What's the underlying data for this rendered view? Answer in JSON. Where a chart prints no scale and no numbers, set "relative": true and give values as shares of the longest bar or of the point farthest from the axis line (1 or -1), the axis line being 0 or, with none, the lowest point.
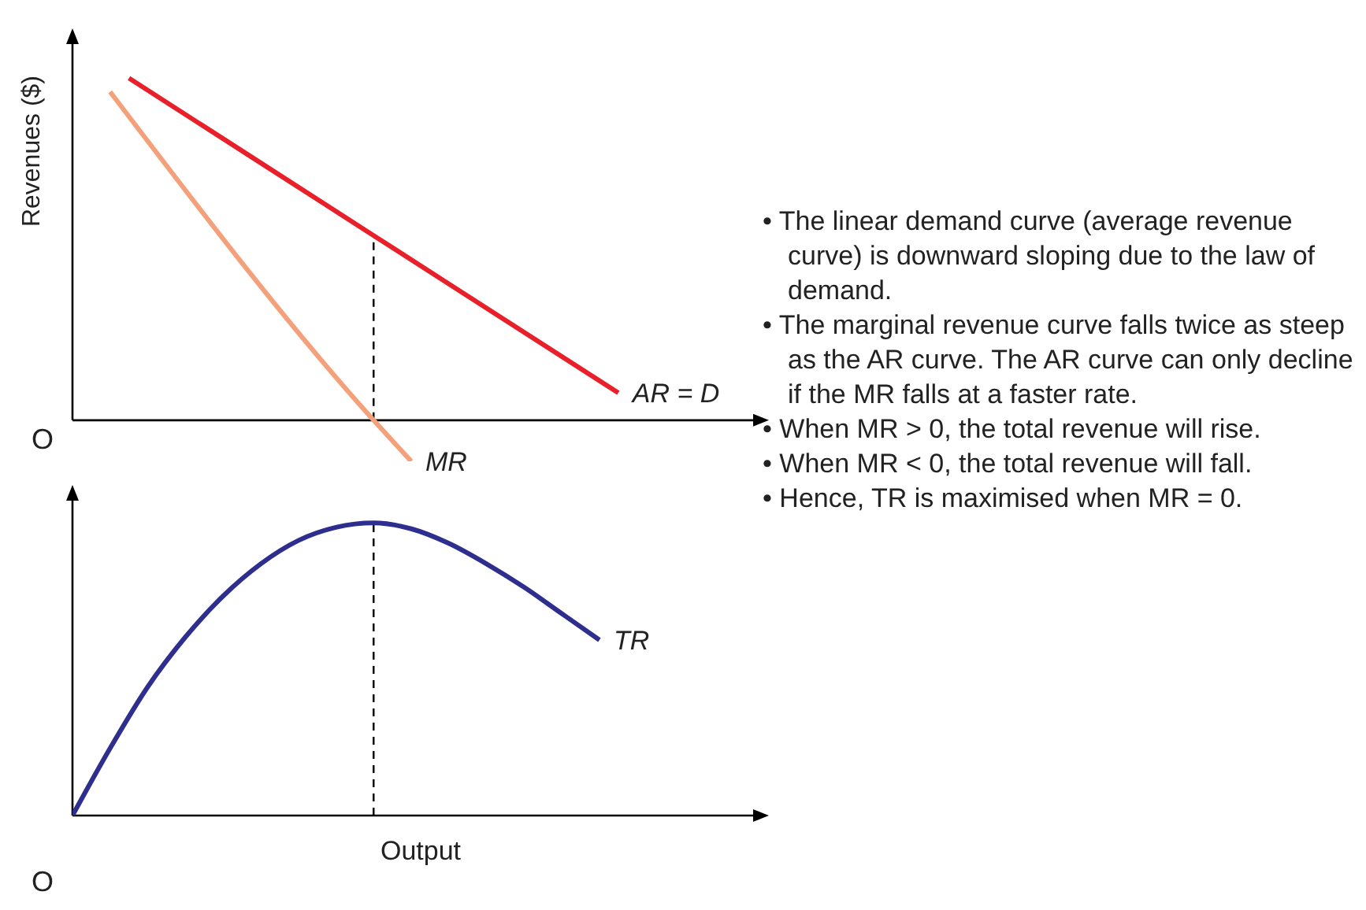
{
  "chart_data": [
    {
      "type": "line",
      "relative": true,
      "ylabel": "Revenues ($)",
      "annotations": [
        "O"
      ],
      "categories": [
        null,
        null,
        null,
        null,
        null,
        null,
        null,
        null,
        null,
        null,
        null,
        null,
        null,
        null,
        null,
        null,
        null,
        null,
        null,
        null,
        null,
        null,
        null,
        null,
        null,
        null,
        null,
        null,
        null,
        null,
        null,
        null,
        null,
        null,
        null,
        null,
        null
      ],
      "series": [
        {
          "name": "AR = D",
          "color": "#e8202a",
          "values": [
            null,
            null,
            null,
            1,
            null,
            null,
            null,
            null,
            null,
            null,
            null,
            null,
            null,
            null,
            null,
            null,
            0.54,
            null,
            null,
            null,
            null,
            null,
            null,
            null,
            null,
            null,
            null,
            null,
            null,
            0.08,
            null,
            null,
            null,
            null,
            null,
            null,
            null
          ]
        },
        {
          "name": "MR",
          "color": "#f4a07a",
          "values": [
            null,
            null,
            0.96,
            null,
            null,
            null,
            null,
            null,
            null,
            null,
            null,
            null,
            null,
            null,
            null,
            null,
            0,
            null,
            -0.12,
            null,
            null,
            null,
            null,
            null,
            null,
            null,
            null,
            null,
            null,
            null,
            null,
            null,
            null,
            null,
            null,
            null,
            null
          ]
        }
      ]
    },
    {
      "type": "line",
      "relative": true,
      "xlabel": "Output",
      "annotations": [
        "O"
      ],
      "categories": [
        null,
        null,
        null,
        null,
        null,
        null,
        null,
        null,
        null,
        null,
        null,
        null,
        null,
        null,
        null,
        null,
        null,
        null,
        null,
        null,
        null,
        null,
        null,
        null,
        null,
        null,
        null,
        null,
        null,
        null,
        null,
        null,
        null,
        null,
        null,
        null,
        null
      ],
      "series": [
        {
          "name": "TR",
          "color": "#2e2e8f",
          "values": [
            0,
            null,
            0.23,
            null,
            0.44,
            null,
            0.61,
            null,
            0.75,
            null,
            0.86,
            null,
            0.94,
            null,
            0.985,
            null,
            1,
            null,
            0.98,
            null,
            0.93,
            null,
            0.86,
            null,
            0.78,
            null,
            0.69,
            null,
            0.6,
            null,
            null,
            null,
            null,
            null,
            null,
            null,
            null
          ]
        }
      ]
    },
    {
      "type": "other",
      "annotations": [
        "• The linear demand curve (average revenue curve) is downward sloping due to the law of demand.",
        "• The marginal revenue curve falls twice as steep as the AR curve. The AR curve can only decline if the MR falls at a faster rate.",
        "• When MR > 0, the total revenue will rise.",
        "• When MR < 0, the total revenue will fall.",
        "• Hence, TR is maximised when MR = 0."
      ]
    }
  ]
}
